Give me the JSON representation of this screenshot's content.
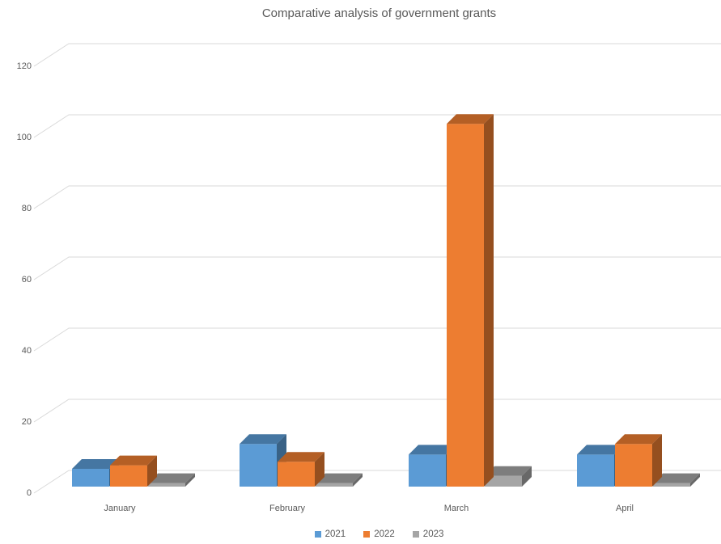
{
  "chart_data": {
    "type": "bar",
    "subtype": "3d-clustered-column",
    "title": "Comparative analysis of government grants",
    "categories": [
      "January",
      "February",
      "March",
      "April"
    ],
    "series": [
      {
        "name": "2021",
        "color": "#5B9BD5",
        "values": [
          5,
          12,
          9,
          9
        ]
      },
      {
        "name": "2022",
        "color": "#ED7D31",
        "values": [
          6,
          7,
          102,
          12
        ]
      },
      {
        "name": "2023",
        "color": "#A5A5A5",
        "values": [
          1,
          1,
          3,
          1
        ]
      }
    ],
    "xlabel": "",
    "ylabel": "",
    "ylim": [
      0,
      120
    ],
    "ytick_step": 20,
    "yticks": [
      0,
      20,
      40,
      60,
      80,
      100,
      120
    ],
    "grid": true,
    "legend_position": "bottom",
    "text_color": "#595959",
    "gridline_color": "#D9D9D9",
    "background_color": "#FFFFFF"
  }
}
